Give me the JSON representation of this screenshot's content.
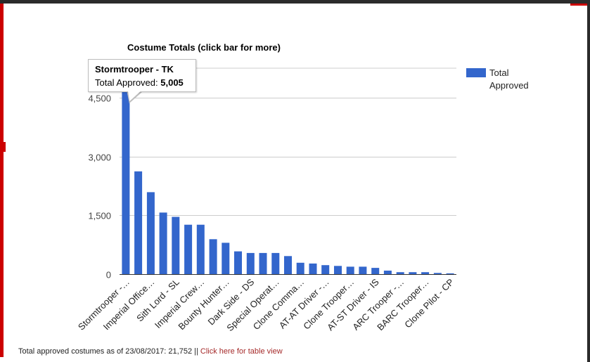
{
  "chart_data": {
    "type": "bar",
    "title": "Costume Totals (click bar for more)",
    "xlabel": "",
    "ylabel": "",
    "ylim": [
      0,
      5250
    ],
    "yticks": [
      0,
      1500,
      3000,
      4500
    ],
    "ytick_labels": [
      "0",
      "1,500",
      "3,000",
      "4,500"
    ],
    "grid": true,
    "legend_position": "right",
    "categories": [
      "Stormtrooper -…",
      "",
      "Imperial Office…",
      "",
      "Sith Lord - SL",
      "",
      "Imperial Crew…",
      "",
      "Bounty Hunter…",
      "",
      "Dark Side - DS",
      "",
      "Special Operat…",
      "",
      "Clone Comma…",
      "",
      "AT-AT Driver -…",
      "",
      "Clone Trooper…",
      "",
      "AT-ST Driver - IS",
      "",
      "ARC Trooper -…",
      "",
      "BARC Trooper…",
      "",
      "Clone Pilot - CP"
    ],
    "series": [
      {
        "name": "Total Approved",
        "color": "#3366cc",
        "values": [
          5005,
          2620,
          2090,
          1570,
          1460,
          1260,
          1260,
          890,
          800,
          580,
          540,
          540,
          540,
          460,
          290,
          270,
          230,
          210,
          190,
          190,
          160,
          90,
          50,
          50,
          50,
          30,
          20
        ]
      }
    ]
  },
  "tooltip": {
    "title": "Stormtrooper - TK",
    "label": "Total Approved:",
    "value": "5,005"
  },
  "footer": {
    "text": "Total approved costumes as of 23/08/2017: 21,752 || ",
    "link": "Click here for table view"
  }
}
